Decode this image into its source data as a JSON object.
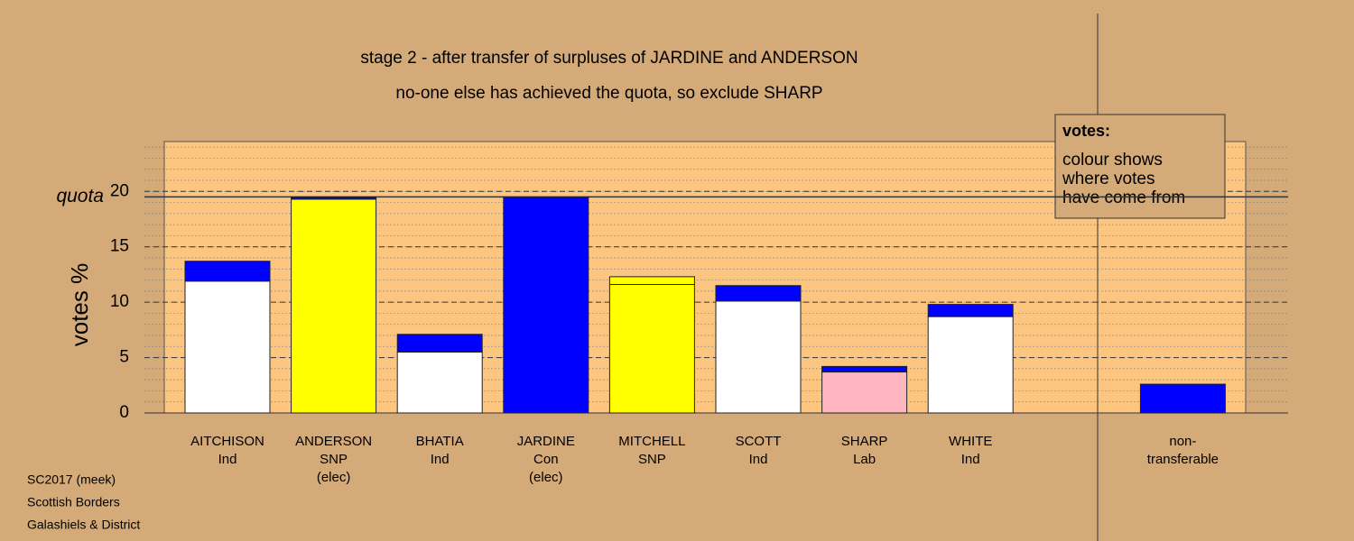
{
  "chart_data": {
    "type": "stacked_bar",
    "title": "stage 2 - after transfer of surpluses of JARDINE and ANDERSON",
    "subtitle": "no-one else has achieved the quota, so exclude SHARP",
    "y_label": "votes %",
    "categories": [
      [
        "AITCHISON",
        "Ind"
      ],
      [
        "ANDERSON",
        "SNP",
        "(elec)"
      ],
      [
        "BHATIA",
        "Ind"
      ],
      [
        "JARDINE",
        "Con",
        "(elec)"
      ],
      [
        "MITCHELL",
        "SNP"
      ],
      [
        "SCOTT",
        "Ind"
      ],
      [
        "SHARP",
        "Lab"
      ],
      [
        "WHITE",
        "Ind"
      ],
      null,
      [
        "non-",
        "transferable"
      ]
    ],
    "series": [
      {
        "colors": [
          "#ffffff",
          "#ffff00",
          "#ffffff",
          "#0000ff",
          "#ffff00",
          "#ffffff",
          "#ffb6c1",
          "#ffffff",
          null,
          "#0000ff"
        ],
        "values": [
          11.9,
          19.3,
          5.5,
          19.5,
          11.6,
          10.1,
          3.7,
          8.7,
          null,
          0
        ]
      },
      {
        "color": "#0000ff",
        "values": [
          1.8,
          0.2,
          1.6,
          0,
          0,
          1.4,
          0.5,
          1.1,
          null,
          2.6
        ]
      },
      {
        "color": "#ffff00",
        "values": [
          0,
          0,
          0,
          0,
          0.7,
          0,
          0,
          0,
          null,
          0
        ]
      }
    ],
    "ylim": [
      0,
      24.5
    ],
    "yticks": [
      0,
      5,
      10,
      15,
      20
    ],
    "minor_grid": 1,
    "quota": 19.5,
    "quota_label": "quota",
    "legend_box": {
      "title": "votes:",
      "lines": [
        "colour shows",
        "where votes",
        "have come from"
      ]
    },
    "footer": [
      "SC2017 (meek)",
      "Scottish Borders",
      "Galashiels & District"
    ]
  }
}
